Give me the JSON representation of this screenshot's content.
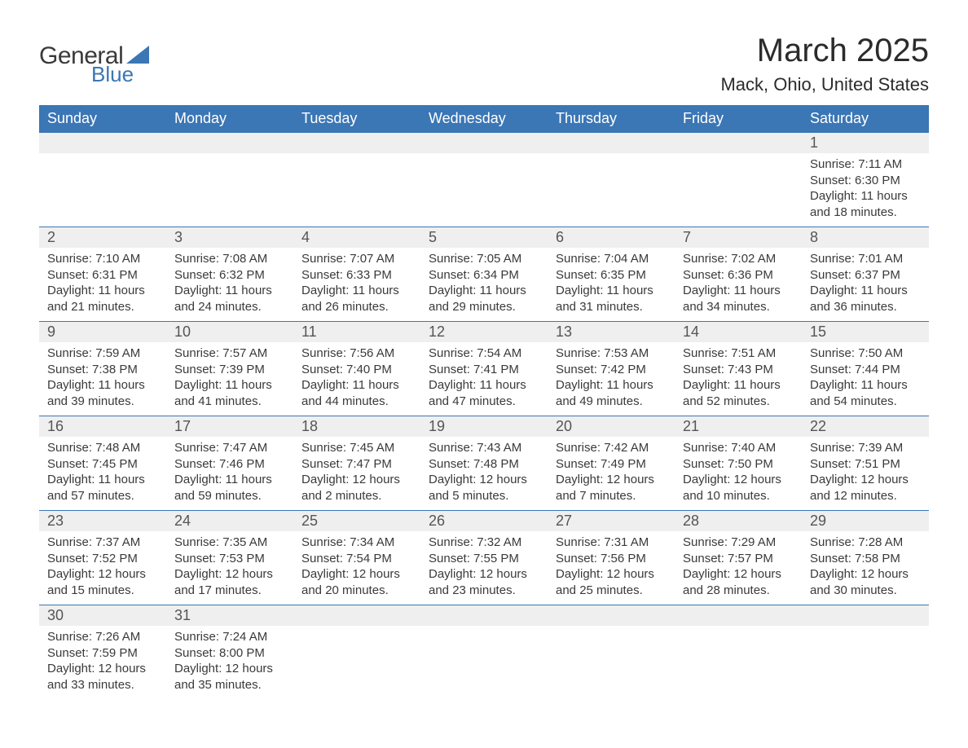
{
  "brand": {
    "word1": "General",
    "word2": "Blue"
  },
  "title": "March 2025",
  "location": "Mack, Ohio, United States",
  "colors": {
    "header_bg": "#3b76b5",
    "header_text": "#ffffff",
    "daynum_bg": "#efefef",
    "row_border": "#3b76b5",
    "body_text": "#3a3a3a",
    "logo_blue": "#3b76b5"
  },
  "typography": {
    "title_fontsize": 40,
    "location_fontsize": 22,
    "weekday_fontsize": 18,
    "daynum_fontsize": 18,
    "daydata_fontsize": 15
  },
  "layout": {
    "columns": 7,
    "rows": 6,
    "week_start": "Sunday"
  },
  "weekdays": [
    "Sunday",
    "Monday",
    "Tuesday",
    "Wednesday",
    "Thursday",
    "Friday",
    "Saturday"
  ],
  "weeks": [
    [
      null,
      null,
      null,
      null,
      null,
      null,
      {
        "day": "1",
        "sunrise": "Sunrise: 7:11 AM",
        "sunset": "Sunset: 6:30 PM",
        "daylight1": "Daylight: 11 hours",
        "daylight2": "and 18 minutes."
      }
    ],
    [
      {
        "day": "2",
        "sunrise": "Sunrise: 7:10 AM",
        "sunset": "Sunset: 6:31 PM",
        "daylight1": "Daylight: 11 hours",
        "daylight2": "and 21 minutes."
      },
      {
        "day": "3",
        "sunrise": "Sunrise: 7:08 AM",
        "sunset": "Sunset: 6:32 PM",
        "daylight1": "Daylight: 11 hours",
        "daylight2": "and 24 minutes."
      },
      {
        "day": "4",
        "sunrise": "Sunrise: 7:07 AM",
        "sunset": "Sunset: 6:33 PM",
        "daylight1": "Daylight: 11 hours",
        "daylight2": "and 26 minutes."
      },
      {
        "day": "5",
        "sunrise": "Sunrise: 7:05 AM",
        "sunset": "Sunset: 6:34 PM",
        "daylight1": "Daylight: 11 hours",
        "daylight2": "and 29 minutes."
      },
      {
        "day": "6",
        "sunrise": "Sunrise: 7:04 AM",
        "sunset": "Sunset: 6:35 PM",
        "daylight1": "Daylight: 11 hours",
        "daylight2": "and 31 minutes."
      },
      {
        "day": "7",
        "sunrise": "Sunrise: 7:02 AM",
        "sunset": "Sunset: 6:36 PM",
        "daylight1": "Daylight: 11 hours",
        "daylight2": "and 34 minutes."
      },
      {
        "day": "8",
        "sunrise": "Sunrise: 7:01 AM",
        "sunset": "Sunset: 6:37 PM",
        "daylight1": "Daylight: 11 hours",
        "daylight2": "and 36 minutes."
      }
    ],
    [
      {
        "day": "9",
        "sunrise": "Sunrise: 7:59 AM",
        "sunset": "Sunset: 7:38 PM",
        "daylight1": "Daylight: 11 hours",
        "daylight2": "and 39 minutes."
      },
      {
        "day": "10",
        "sunrise": "Sunrise: 7:57 AM",
        "sunset": "Sunset: 7:39 PM",
        "daylight1": "Daylight: 11 hours",
        "daylight2": "and 41 minutes."
      },
      {
        "day": "11",
        "sunrise": "Sunrise: 7:56 AM",
        "sunset": "Sunset: 7:40 PM",
        "daylight1": "Daylight: 11 hours",
        "daylight2": "and 44 minutes."
      },
      {
        "day": "12",
        "sunrise": "Sunrise: 7:54 AM",
        "sunset": "Sunset: 7:41 PM",
        "daylight1": "Daylight: 11 hours",
        "daylight2": "and 47 minutes."
      },
      {
        "day": "13",
        "sunrise": "Sunrise: 7:53 AM",
        "sunset": "Sunset: 7:42 PM",
        "daylight1": "Daylight: 11 hours",
        "daylight2": "and 49 minutes."
      },
      {
        "day": "14",
        "sunrise": "Sunrise: 7:51 AM",
        "sunset": "Sunset: 7:43 PM",
        "daylight1": "Daylight: 11 hours",
        "daylight2": "and 52 minutes."
      },
      {
        "day": "15",
        "sunrise": "Sunrise: 7:50 AM",
        "sunset": "Sunset: 7:44 PM",
        "daylight1": "Daylight: 11 hours",
        "daylight2": "and 54 minutes."
      }
    ],
    [
      {
        "day": "16",
        "sunrise": "Sunrise: 7:48 AM",
        "sunset": "Sunset: 7:45 PM",
        "daylight1": "Daylight: 11 hours",
        "daylight2": "and 57 minutes."
      },
      {
        "day": "17",
        "sunrise": "Sunrise: 7:47 AM",
        "sunset": "Sunset: 7:46 PM",
        "daylight1": "Daylight: 11 hours",
        "daylight2": "and 59 minutes."
      },
      {
        "day": "18",
        "sunrise": "Sunrise: 7:45 AM",
        "sunset": "Sunset: 7:47 PM",
        "daylight1": "Daylight: 12 hours",
        "daylight2": "and 2 minutes."
      },
      {
        "day": "19",
        "sunrise": "Sunrise: 7:43 AM",
        "sunset": "Sunset: 7:48 PM",
        "daylight1": "Daylight: 12 hours",
        "daylight2": "and 5 minutes."
      },
      {
        "day": "20",
        "sunrise": "Sunrise: 7:42 AM",
        "sunset": "Sunset: 7:49 PM",
        "daylight1": "Daylight: 12 hours",
        "daylight2": "and 7 minutes."
      },
      {
        "day": "21",
        "sunrise": "Sunrise: 7:40 AM",
        "sunset": "Sunset: 7:50 PM",
        "daylight1": "Daylight: 12 hours",
        "daylight2": "and 10 minutes."
      },
      {
        "day": "22",
        "sunrise": "Sunrise: 7:39 AM",
        "sunset": "Sunset: 7:51 PM",
        "daylight1": "Daylight: 12 hours",
        "daylight2": "and 12 minutes."
      }
    ],
    [
      {
        "day": "23",
        "sunrise": "Sunrise: 7:37 AM",
        "sunset": "Sunset: 7:52 PM",
        "daylight1": "Daylight: 12 hours",
        "daylight2": "and 15 minutes."
      },
      {
        "day": "24",
        "sunrise": "Sunrise: 7:35 AM",
        "sunset": "Sunset: 7:53 PM",
        "daylight1": "Daylight: 12 hours",
        "daylight2": "and 17 minutes."
      },
      {
        "day": "25",
        "sunrise": "Sunrise: 7:34 AM",
        "sunset": "Sunset: 7:54 PM",
        "daylight1": "Daylight: 12 hours",
        "daylight2": "and 20 minutes."
      },
      {
        "day": "26",
        "sunrise": "Sunrise: 7:32 AM",
        "sunset": "Sunset: 7:55 PM",
        "daylight1": "Daylight: 12 hours",
        "daylight2": "and 23 minutes."
      },
      {
        "day": "27",
        "sunrise": "Sunrise: 7:31 AM",
        "sunset": "Sunset: 7:56 PM",
        "daylight1": "Daylight: 12 hours",
        "daylight2": "and 25 minutes."
      },
      {
        "day": "28",
        "sunrise": "Sunrise: 7:29 AM",
        "sunset": "Sunset: 7:57 PM",
        "daylight1": "Daylight: 12 hours",
        "daylight2": "and 28 minutes."
      },
      {
        "day": "29",
        "sunrise": "Sunrise: 7:28 AM",
        "sunset": "Sunset: 7:58 PM",
        "daylight1": "Daylight: 12 hours",
        "daylight2": "and 30 minutes."
      }
    ],
    [
      {
        "day": "30",
        "sunrise": "Sunrise: 7:26 AM",
        "sunset": "Sunset: 7:59 PM",
        "daylight1": "Daylight: 12 hours",
        "daylight2": "and 33 minutes."
      },
      {
        "day": "31",
        "sunrise": "Sunrise: 7:24 AM",
        "sunset": "Sunset: 8:00 PM",
        "daylight1": "Daylight: 12 hours",
        "daylight2": "and 35 minutes."
      },
      null,
      null,
      null,
      null,
      null
    ]
  ]
}
